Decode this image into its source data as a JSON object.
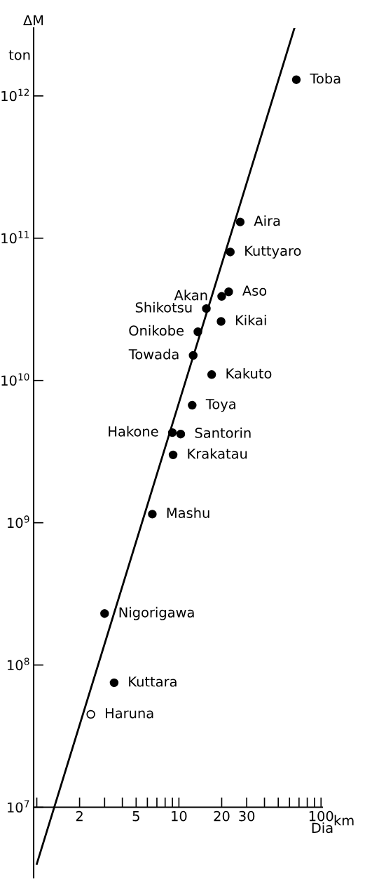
{
  "chart_data": {
    "type": "scatter",
    "ylabel": "ΔM",
    "xlabel": "Dia",
    "log": "xy",
    "grid": false,
    "legend": false,
    "annotations": [
      {
        "text": "Toba",
        "x": 67,
        "y": 1300000000000.0
      },
      {
        "text": "Aira",
        "x": 27,
        "y": 130000000000.0
      },
      {
        "text": "Kuttyaro",
        "x": 23,
        "y": 80000000000.0
      },
      {
        "text": "Aso",
        "x": 22.4,
        "y": 42000000000.0
      },
      {
        "text": "Akan",
        "x": 20,
        "y": 39000000000.0
      },
      {
        "text": "Shikotsu",
        "x": 15.6,
        "y": 32000000000.0
      },
      {
        "text": "Kikai",
        "x": 19.8,
        "y": 26000000000.0
      },
      {
        "text": "Onikobe",
        "x": 13.6,
        "y": 22000000000.0
      },
      {
        "text": "Towada",
        "x": 12.6,
        "y": 15000000000.0
      },
      {
        "text": "Kakuto",
        "x": 17,
        "y": 11000000000.0
      },
      {
        "text": "Toya",
        "x": 12.4,
        "y": 6700000000.0
      },
      {
        "text": "Hakone",
        "x": 9,
        "y": 4300000000.0
      },
      {
        "text": "Santorin",
        "x": 10.3,
        "y": 4200000000.0
      },
      {
        "text": "Krakatau",
        "x": 9.1,
        "y": 3000000000.0
      },
      {
        "text": "Mashu",
        "x": 6.5,
        "y": 1150000000.0
      },
      {
        "text": "Nigorigawa",
        "x": 3.0,
        "y": 230000000.0
      },
      {
        "text": "Kuttara",
        "x": 3.5,
        "y": 75000000.0
      },
      {
        "text": "Haruna",
        "x": 2.4,
        "y": 45000000.0
      },
      "ton",
      "km"
    ],
    "xlim": [
      0.95,
      102
    ],
    "ylim": [
      3200000.0,
      3000000000000.0
    ],
    "xticks": [
      2,
      5,
      10,
      20,
      30,
      100
    ],
    "yticks": [
      {
        "value": 10000000.0,
        "label": "10$^{7}$"
      },
      {
        "value": 100000000.0,
        "label": "10$^{8}$"
      },
      {
        "value": 1000000000.0,
        "label": "10$^{9}$"
      },
      {
        "value": 10000000000.0,
        "label": "10$^{10}$"
      },
      {
        "value": 100000000000.0,
        "label": "10$^{11}$"
      },
      {
        "value": 1000000000000.0,
        "label": "10$^{12}$"
      }
    ],
    "series": [
      {
        "color": "#000000",
        "marker": "circle",
        "x": [
          67,
          27,
          23,
          22.4,
          20,
          15.6,
          19.8,
          13.6,
          12.6,
          17,
          12.4,
          9,
          10.3,
          9.1,
          6.5,
          3.0,
          3.5
        ],
        "values": [
          1300000000000.0,
          130000000000.0,
          80000000000.0,
          42000000000.0,
          39000000000.0,
          32000000000.0,
          26000000000.0,
          22000000000.0,
          15000000000.0,
          11000000000.0,
          6700000000.0,
          4300000000.0,
          4200000000.0,
          3000000000.0,
          1150000000.0,
          230000000.0,
          75000000.0
        ]
      },
      {
        "color": "#ffffff",
        "marker": "circle",
        "x": [
          2.4
        ],
        "values": [
          45000000.0
        ]
      },
      {
        "type": "line",
        "color": "#000000",
        "line_style": "solid",
        "x": [
          1,
          65
        ],
        "values": [
          4000000.0,
          3000000000000.0
        ]
      }
    ]
  }
}
